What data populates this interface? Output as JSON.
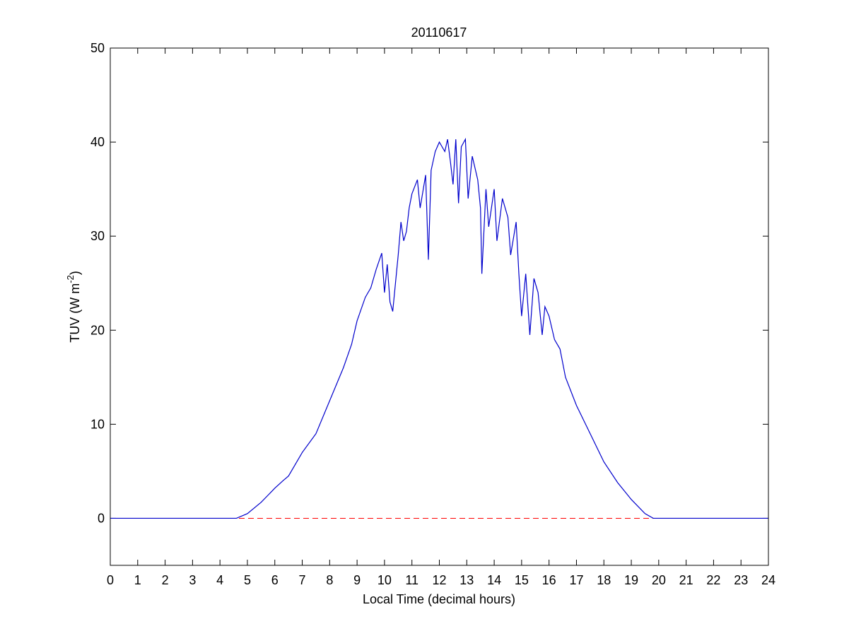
{
  "chart_data": {
    "type": "line",
    "title": "20110617",
    "xlabel": "Local Time (decimal hours)",
    "ylabel": {
      "text": "TUV (W m",
      "sup": "-2",
      "end": ")"
    },
    "x": [
      0,
      4.6,
      5,
      5.5,
      6,
      6.3,
      6.5,
      7,
      7.5,
      8,
      8.5,
      8.8,
      9,
      9.3,
      9.5,
      9.7,
      9.9,
      10,
      10.1,
      10.2,
      10.3,
      10.4,
      10.5,
      10.6,
      10.7,
      10.8,
      10.9,
      11,
      11.2,
      11.3,
      11.5,
      11.6,
      11.7,
      11.85,
      12,
      12.2,
      12.3,
      12.4,
      12.5,
      12.6,
      12.7,
      12.8,
      12.95,
      13.05,
      13.2,
      13.4,
      13.5,
      13.55,
      13.7,
      13.8,
      13.9,
      14,
      14.1,
      14.3,
      14.5,
      14.6,
      14.8,
      14.9,
      15,
      15.15,
      15.3,
      15.45,
      15.6,
      15.75,
      15.85,
      16,
      16.2,
      16.4,
      16.6,
      17,
      17.5,
      18,
      18.5,
      19,
      19.5,
      19.8,
      24
    ],
    "series": [
      {
        "color": "#0000cc",
        "values": [
          0,
          0,
          0.5,
          1.7,
          3.2,
          4.0,
          4.5,
          7,
          9,
          12.5,
          16,
          18.5,
          21,
          23.5,
          24.5,
          26.5,
          28.2,
          24,
          27,
          23,
          22,
          25,
          28,
          31.5,
          29.5,
          30.5,
          33,
          34.5,
          36,
          33,
          36.5,
          27.5,
          37,
          39,
          40,
          39,
          40.3,
          38,
          35.5,
          40.3,
          33.5,
          39.5,
          40.3,
          34,
          38.5,
          36,
          33,
          26,
          35,
          31,
          33,
          35,
          29.5,
          34,
          32,
          28,
          31.5,
          26,
          21.5,
          26,
          19.5,
          25.5,
          24,
          19.5,
          22.5,
          21.5,
          19,
          18,
          15,
          12,
          9,
          6,
          3.8,
          2,
          0.5,
          0,
          0
        ]
      }
    ],
    "hline": {
      "value": 0,
      "color": "#ff0000"
    },
    "xlim": [
      0,
      24
    ],
    "ylim": [
      -5,
      50
    ],
    "xticks": [
      0,
      1,
      2,
      3,
      4,
      5,
      6,
      7,
      8,
      9,
      10,
      11,
      12,
      13,
      14,
      15,
      16,
      17,
      18,
      19,
      20,
      21,
      22,
      23,
      24
    ],
    "yticks": [
      0,
      10,
      20,
      30,
      40,
      50
    ]
  }
}
